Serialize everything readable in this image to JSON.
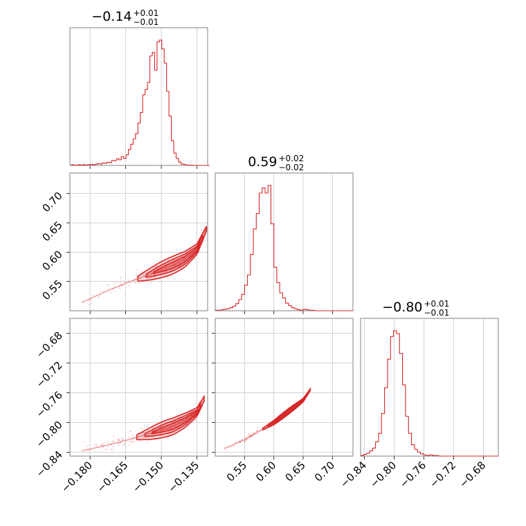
{
  "chart_data": {
    "type": "corner",
    "color": "#d62728",
    "grid": true,
    "parameters": [
      {
        "title": {
          "median": "−0.14",
          "plus": "+0.01",
          "minus": "−0.01"
        },
        "ticks": [
          -0.18,
          -0.165,
          -0.15,
          -0.135
        ],
        "tick_labels": [
          "−0.180",
          "−0.165",
          "−0.150",
          "−0.135"
        ],
        "range": [
          -0.1885,
          -0.1305
        ],
        "hist_bins": [
          -0.188,
          -0.1297,
          58
        ],
        "hist_counts": [
          2,
          1,
          1,
          2,
          1,
          2,
          1,
          2,
          3,
          2,
          3,
          5,
          4,
          7,
          6,
          9,
          8,
          14,
          13,
          19,
          16,
          25,
          20,
          30,
          45,
          60,
          75,
          90,
          120,
          150,
          200,
          215,
          235,
          310,
          320,
          270,
          350,
          355,
          330,
          290,
          210,
          140,
          70,
          35,
          20,
          10,
          4,
          3,
          1,
          1,
          1,
          0,
          0,
          0,
          0,
          0,
          0,
          0
        ]
      },
      {
        "title": {
          "median": "0.59",
          "plus": "+0.02",
          "minus": "−0.02"
        },
        "ticks": [
          0.55,
          0.6,
          0.65,
          0.7
        ],
        "tick_labels": [
          "0.55",
          "0.60",
          "0.65",
          "0.70"
        ],
        "range": [
          0.5,
          0.735
        ],
        "hist_bins": [
          0.5,
          0.735,
          47
        ],
        "hist_counts": [
          1,
          1,
          2,
          3,
          4,
          6,
          9,
          14,
          22,
          32,
          50,
          70,
          110,
          160,
          190,
          230,
          240,
          230,
          245,
          170,
          85,
          55,
          35,
          25,
          15,
          10,
          6,
          4,
          2,
          1,
          3,
          2,
          1,
          1,
          0,
          0,
          0,
          0,
          0,
          0,
          0,
          0,
          0,
          0,
          0,
          0,
          0
        ]
      },
      {
        "title": {
          "median": "−0.80",
          "plus": "+0.01",
          "minus": "−0.01"
        },
        "ticks": [
          -0.84,
          -0.8,
          -0.76,
          -0.72,
          -0.68
        ],
        "tick_labels": [
          "−0.84",
          "−0.80",
          "−0.76",
          "−0.72",
          "−0.68"
        ],
        "range": [
          -0.845,
          -0.66
        ],
        "hist_bins": [
          -0.845,
          -0.66,
          46
        ],
        "hist_counts": [
          1,
          3,
          5,
          9,
          14,
          25,
          40,
          75,
          120,
          170,
          210,
          220,
          215,
          180,
          125,
          70,
          40,
          20,
          12,
          7,
          4,
          2,
          1,
          2,
          1,
          1,
          0,
          0,
          0,
          0,
          0,
          0,
          0,
          0,
          0,
          0,
          0,
          0,
          0,
          0,
          0,
          0,
          0,
          0,
          0,
          0
        ]
      }
    ],
    "scatter_pairs": [
      {
        "x_param": 0,
        "y_param": 1,
        "trend": [
          [
            -0.1835,
            0.514
          ],
          [
            -0.175,
            0.53
          ],
          [
            -0.165,
            0.547
          ],
          [
            -0.155,
            0.562
          ],
          [
            -0.145,
            0.578
          ],
          [
            -0.14,
            0.588
          ],
          [
            -0.135,
            0.605
          ],
          [
            -0.131,
            0.64
          ]
        ],
        "spread": 0.012
      },
      {
        "x_param": 0,
        "y_param": 2,
        "trend": [
          [
            -0.1835,
            -0.838
          ],
          [
            -0.175,
            -0.832
          ],
          [
            -0.165,
            -0.824
          ],
          [
            -0.155,
            -0.815
          ],
          [
            -0.145,
            -0.805
          ],
          [
            -0.14,
            -0.797
          ],
          [
            -0.135,
            -0.786
          ],
          [
            -0.132,
            -0.768
          ]
        ],
        "spread": 0.009
      },
      {
        "x_param": 1,
        "y_param": 2,
        "trend": [
          [
            0.515,
            -0.835
          ],
          [
            0.55,
            -0.823
          ],
          [
            0.6,
            -0.8
          ],
          [
            0.65,
            -0.77
          ],
          [
            0.662,
            -0.756
          ]
        ],
        "spread": 0.003
      }
    ]
  }
}
